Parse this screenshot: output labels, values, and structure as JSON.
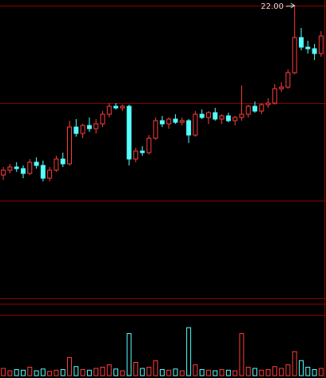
{
  "chart_data": {
    "type": "candlestick",
    "annotation": "22.00",
    "up_color": "#ff3c3c",
    "down_color": "#54ffff",
    "ylim": [
      12.675,
      22.175
    ],
    "open": [
      16.7,
      16.85,
      16.95,
      16.9,
      16.75,
      17.1,
      17.0,
      16.6,
      16.85,
      17.2,
      17.05,
      18.2,
      18.0,
      18.25,
      18.15,
      18.3,
      18.6,
      18.85,
      18.8,
      18.85,
      17.2,
      17.45,
      17.4,
      17.85,
      18.4,
      18.3,
      18.45,
      18.35,
      18.4,
      17.95,
      18.6,
      18.5,
      18.65,
      18.45,
      18.55,
      18.4,
      18.5,
      18.6,
      18.85,
      18.7,
      18.9,
      18.95,
      19.4,
      19.45,
      19.9,
      21.0,
      20.7,
      20.65,
      20.5
    ],
    "high": [
      16.95,
      17.05,
      17.1,
      17.0,
      17.2,
      17.25,
      17.15,
      16.95,
      17.3,
      17.4,
      18.4,
      18.45,
      18.3,
      18.5,
      18.45,
      18.7,
      18.95,
      18.95,
      18.9,
      18.9,
      17.55,
      17.6,
      17.95,
      18.5,
      18.55,
      18.5,
      18.6,
      18.5,
      18.45,
      18.7,
      18.75,
      18.7,
      18.8,
      18.6,
      18.65,
      18.55,
      19.5,
      18.9,
      19.0,
      18.95,
      19.1,
      19.55,
      19.6,
      20.0,
      22.0,
      21.3,
      20.9,
      20.8,
      21.2
    ],
    "low": [
      16.55,
      16.75,
      16.8,
      16.6,
      16.7,
      16.9,
      16.5,
      16.5,
      16.8,
      16.95,
      17.0,
      17.9,
      17.85,
      18.05,
      18.0,
      18.2,
      18.5,
      18.75,
      18.7,
      17.0,
      17.1,
      17.3,
      17.35,
      17.8,
      18.2,
      18.15,
      18.3,
      18.25,
      17.7,
      17.9,
      18.45,
      18.3,
      18.4,
      18.3,
      18.35,
      18.25,
      18.4,
      18.5,
      18.65,
      18.6,
      18.8,
      18.9,
      19.3,
      19.4,
      19.85,
      20.6,
      20.5,
      20.3,
      20.4
    ],
    "close": [
      16.85,
      16.95,
      16.9,
      16.75,
      17.1,
      17.0,
      16.6,
      16.85,
      17.2,
      17.05,
      18.2,
      18.0,
      18.25,
      18.15,
      18.3,
      18.6,
      18.85,
      18.8,
      18.85,
      17.2,
      17.45,
      17.4,
      17.85,
      18.4,
      18.3,
      18.45,
      18.35,
      18.4,
      17.95,
      18.6,
      18.5,
      18.65,
      18.45,
      18.55,
      18.4,
      18.5,
      18.6,
      18.85,
      18.7,
      18.9,
      18.95,
      19.4,
      19.45,
      19.9,
      21.0,
      20.7,
      20.65,
      20.5,
      21.05
    ],
    "volume": [
      12,
      8,
      10,
      9,
      14,
      8,
      11,
      7,
      9,
      10,
      30,
      15,
      10,
      9,
      12,
      14,
      18,
      11,
      8,
      70,
      22,
      12,
      14,
      25,
      10,
      9,
      11,
      8,
      80,
      18,
      10,
      9,
      8,
      10,
      9,
      8,
      70,
      14,
      12,
      9,
      10,
      15,
      12,
      18,
      40,
      25,
      14,
      10,
      12
    ],
    "volume_ylim": [
      0,
      100
    ]
  }
}
